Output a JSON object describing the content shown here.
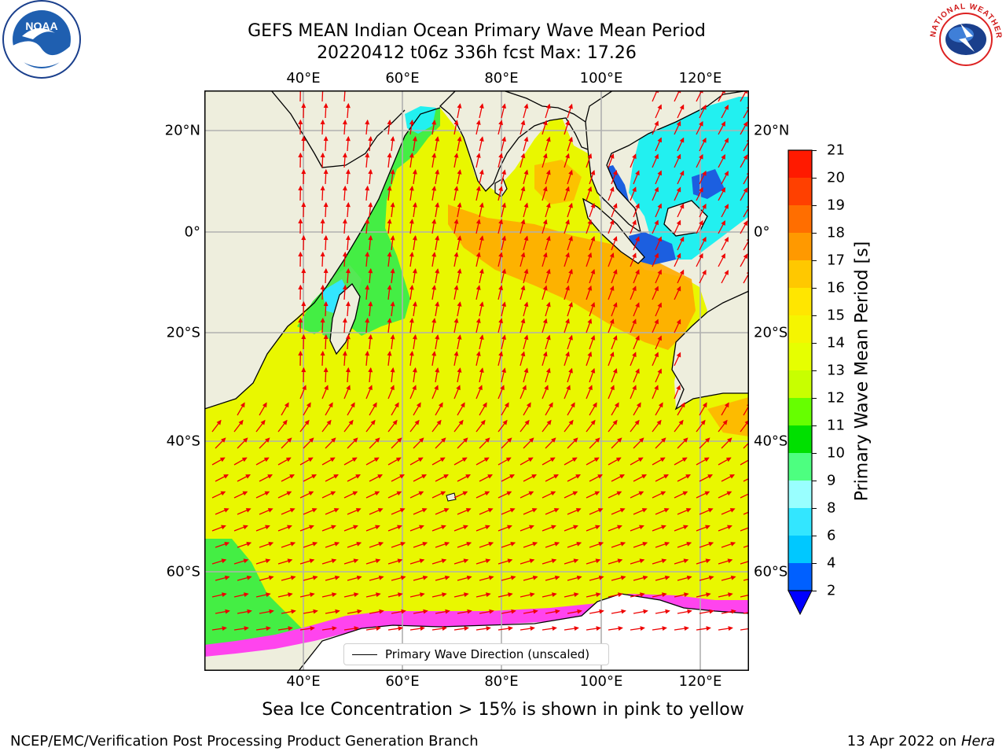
{
  "title": {
    "line1": "GEFS MEAN Indian Ocean Primary Wave Mean Period",
    "line2": "20220412 t06z 336h fcst   Max: 17.26"
  },
  "lon_ticks": [
    {
      "label": "40°E",
      "lon": 40
    },
    {
      "label": "60°E",
      "lon": 60
    },
    {
      "label": "80°E",
      "lon": 80
    },
    {
      "label": "100°E",
      "lon": 100
    },
    {
      "label": "120°E",
      "lon": 120
    }
  ],
  "lat_ticks": [
    {
      "label": "20°N",
      "lat": 20
    },
    {
      "label": "0°",
      "lat": 0
    },
    {
      "label": "20°S",
      "lat": -20
    },
    {
      "label": "40°S",
      "lat": -40
    },
    {
      "label": "60°S",
      "lat": -60
    }
  ],
  "colorbar": {
    "label": "Primary Wave Mean Period [s]",
    "ticks": [
      "2",
      "4",
      "6",
      "8",
      "9",
      "10",
      "11",
      "12",
      "13",
      "14",
      "15",
      "16",
      "17",
      "18",
      "19",
      "20",
      "21"
    ],
    "colors": [
      "#0060ff",
      "#00c8ff",
      "#33e6ff",
      "#99ffff",
      "#4dff80",
      "#00e000",
      "#66ff00",
      "#c8ff00",
      "#e6ff00",
      "#f5f500",
      "#ffe600",
      "#ffc800",
      "#ff9900",
      "#ff6e00",
      "#ff4000",
      "#ff1a00"
    ],
    "extend_color": "#0000ff"
  },
  "legend": {
    "label": "Primary Wave Direction (unscaled)"
  },
  "subtitle": "Sea Ice Concentration > 15% is shown in pink to yellow",
  "footer": {
    "left": "NCEP/EMC/Verification Post Processing Product Generation Branch",
    "right_date": "13 Apr 2022 on ",
    "right_host": "Hera"
  },
  "colors": {
    "land": "#eeeedd",
    "ocean_main": "#e9f700",
    "high_period": "#ffaa00",
    "low_period": "#44ee44",
    "shallow": "#22f0f0",
    "deep_blue": "#1c5fe0",
    "ice_pink": "#ff44ee",
    "arrow": "#ee0000",
    "grid": "#b0b0b0"
  },
  "map_extent": {
    "lon_min": 20,
    "lon_max": 130,
    "lat_min": -75,
    "lat_max": 28
  },
  "logos": {
    "noaa": "NOAA",
    "nws_text": "NATIONAL WEATHER SERVICE"
  }
}
